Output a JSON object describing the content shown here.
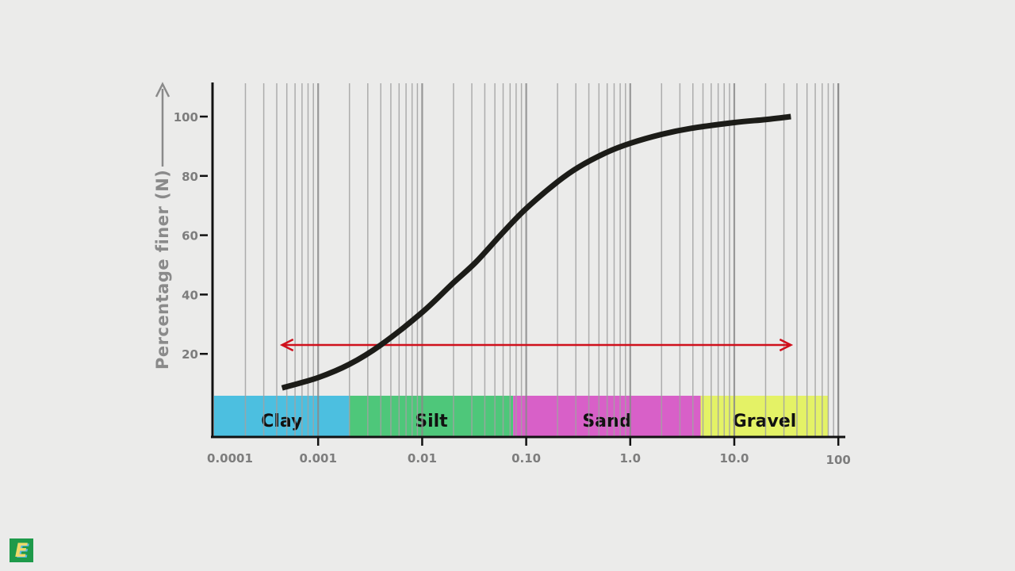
{
  "chart_data": {
    "type": "line",
    "xscale": "log",
    "xlim": [
      0.0001,
      100
    ],
    "ylim": [
      -8,
      112
    ],
    "ylabel": "Percentage finer (N)",
    "xlabel": "",
    "x_ticks": [
      {
        "value": 0.0001,
        "label": "0.0001"
      },
      {
        "value": 0.001,
        "label": "0.001"
      },
      {
        "value": 0.01,
        "label": "0.01"
      },
      {
        "value": 0.1,
        "label": "0.10"
      },
      {
        "value": 1,
        "label": "1.0"
      },
      {
        "value": 10,
        "label": "10.0"
      },
      {
        "value": 100,
        "label": "100"
      }
    ],
    "y_ticks": [
      {
        "value": 20,
        "label": "20"
      },
      {
        "value": 40,
        "label": "40"
      },
      {
        "value": 60,
        "label": "60"
      },
      {
        "value": 80,
        "label": "80"
      },
      {
        "value": 100,
        "label": "100"
      }
    ],
    "grid": "vertical log gridlines",
    "series": [
      {
        "color": "#1c1c18",
        "x": [
          0.00045,
          0.001,
          0.002,
          0.004,
          0.01,
          0.02,
          0.033,
          0.06,
          0.1,
          0.2,
          0.32,
          0.6,
          1,
          2,
          3.8,
          10,
          20,
          35
        ],
        "y": [
          8.5,
          12,
          16.5,
          23,
          34,
          44,
          51,
          61,
          69,
          78,
          83,
          88,
          91,
          94,
          96,
          98,
          99,
          100
        ]
      }
    ],
    "range_arrow": {
      "from": 0.00045,
      "to": 35,
      "y": 23,
      "color": "#d0101c"
    },
    "bands": [
      {
        "label": "Clay",
        "from": 0.0001,
        "to": 0.002,
        "color": "#4cbfe0"
      },
      {
        "label": "Silt",
        "from": 0.002,
        "to": 0.075,
        "color": "#4ec77a"
      },
      {
        "label": "Sand",
        "from": 0.075,
        "to": 4.75,
        "color": "#d860c8"
      },
      {
        "label": "Gravel",
        "from": 4.75,
        "to": 80,
        "color": "#e4f266"
      }
    ]
  },
  "logo": {
    "text": "E",
    "icon": "brand-logo"
  }
}
